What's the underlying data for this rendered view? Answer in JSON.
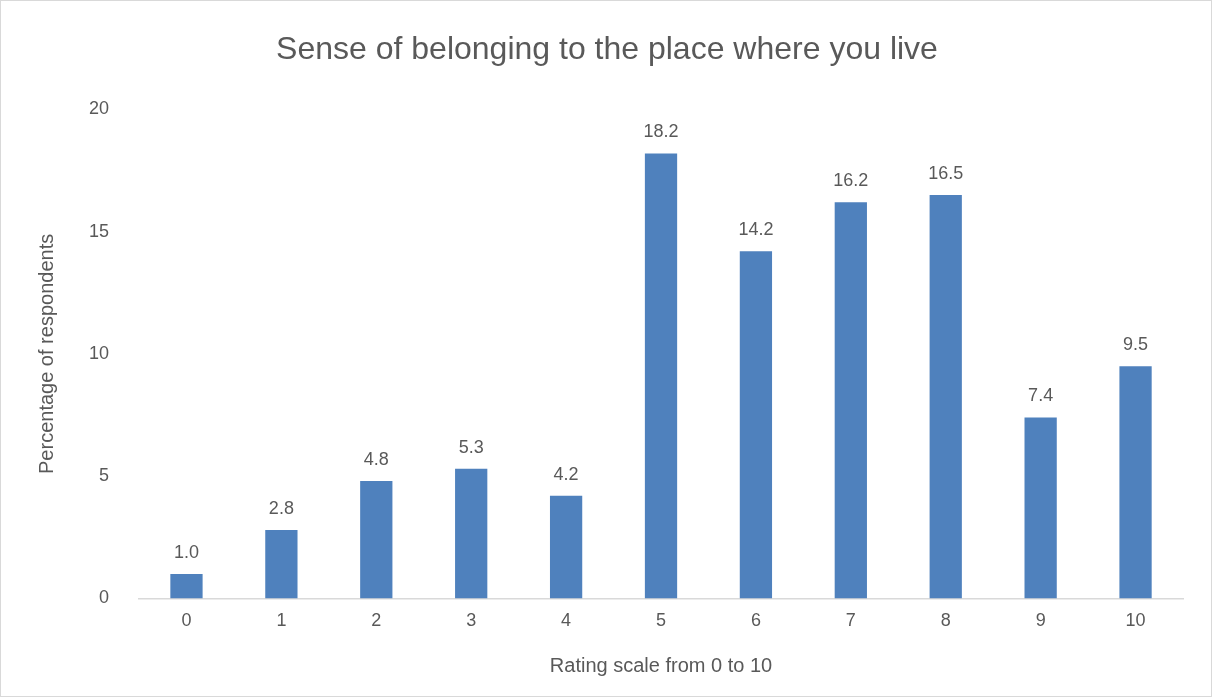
{
  "chart_data": {
    "type": "bar",
    "title": "Sense of belonging to the place where you live",
    "xlabel": "Rating scale from 0 to 10",
    "ylabel": "Percentage of respondents",
    "categories": [
      "0",
      "1",
      "2",
      "3",
      "4",
      "5",
      "6",
      "7",
      "8",
      "9",
      "10"
    ],
    "values": [
      1.0,
      2.8,
      4.8,
      5.3,
      4.2,
      18.2,
      14.2,
      16.2,
      16.5,
      7.4,
      9.5
    ],
    "value_labels": [
      "1.0",
      "2.8",
      "4.8",
      "5.3",
      "4.2",
      "18.2",
      "14.2",
      "16.2",
      "16.5",
      "7.4",
      "9.5"
    ],
    "color": "#4f81bd",
    "ylim": [
      0,
      20
    ],
    "yticks": [
      0,
      5,
      10,
      15,
      20
    ],
    "grid": false,
    "legend": false
  }
}
